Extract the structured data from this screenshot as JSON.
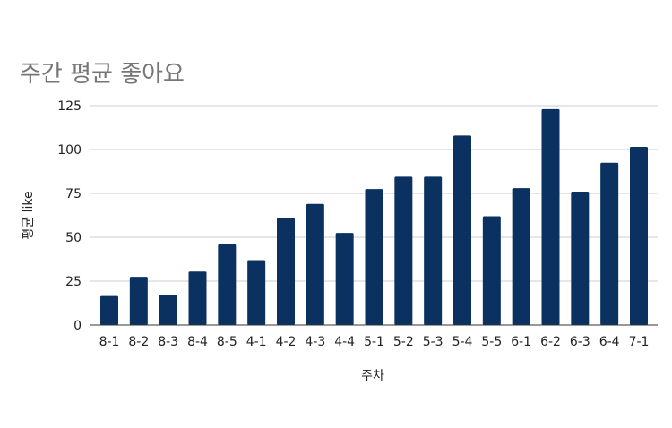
{
  "chart_data": {
    "type": "bar",
    "title": "주간 평균 좋아요",
    "xlabel": "주차",
    "ylabel": "평균 like",
    "ylim": [
      0,
      125
    ],
    "yticks": [
      0,
      25,
      50,
      75,
      100,
      125
    ],
    "grid": true,
    "legend": "none",
    "bar_color": "#0a3160",
    "grid_color": "#cccccc",
    "categories": [
      "8-1",
      "8-2",
      "8-3",
      "8-4",
      "8-5",
      "4-1",
      "4-2",
      "4-3",
      "4-4",
      "5-1",
      "5-2",
      "5-3",
      "5-4",
      "5-5",
      "6-1",
      "6-2",
      "6-3",
      "6-4",
      "7-1"
    ],
    "values": [
      16.5,
      27.5,
      17,
      30.5,
      46,
      37,
      61,
      69,
      52.5,
      77.5,
      84.5,
      84.5,
      108,
      62,
      78,
      123,
      76,
      92.5,
      101.5
    ]
  }
}
